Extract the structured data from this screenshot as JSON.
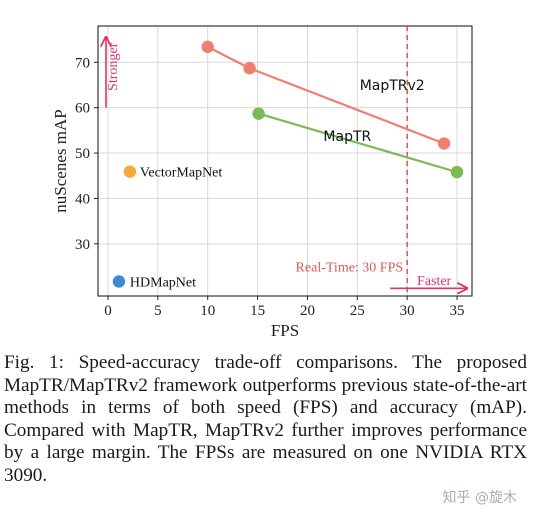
{
  "chart_data": {
    "type": "scatter",
    "xlabel": "FPS",
    "ylabel": "nuScenes mAP",
    "xlim": [
      -1,
      36.5
    ],
    "ylim": [
      18.5,
      78
    ],
    "xticks": [
      0,
      5,
      10,
      15,
      20,
      25,
      30,
      35
    ],
    "yticks": [
      30,
      40,
      50,
      60,
      70
    ],
    "xtick_labels": [
      "0",
      "5",
      "10",
      "15",
      "20",
      "25",
      "30",
      "35"
    ],
    "ytick_labels": [
      "30",
      "40",
      "50",
      "60",
      "70"
    ],
    "grid": true,
    "series": [
      {
        "name": "MapTRv2",
        "color": "#f07f72",
        "line": true,
        "points": [
          {
            "x": 10.0,
            "y": 73.4
          },
          {
            "x": 14.2,
            "y": 68.7
          },
          {
            "x": 33.7,
            "y": 52.1
          }
        ]
      },
      {
        "name": "MapTR",
        "color": "#7dba54",
        "line": true,
        "points": [
          {
            "x": 15.1,
            "y": 58.7
          },
          {
            "x": 35.0,
            "y": 45.8
          }
        ]
      },
      {
        "name": "VectorMapNet",
        "color": "#f4a93c",
        "line": false,
        "points": [
          {
            "x": 2.2,
            "y": 45.9
          }
        ]
      },
      {
        "name": "HDMapNet",
        "color": "#3d8bd2",
        "line": false,
        "points": [
          {
            "x": 1.1,
            "y": 21.7
          }
        ]
      }
    ],
    "annotations": [
      {
        "text": "MapTRv2",
        "anchor_x": 28.5,
        "anchor_y": 65.0
      },
      {
        "text": "MapTR",
        "anchor_x": 24.0,
        "anchor_y": 53.8
      },
      {
        "text": "VectorMapNet",
        "anchor_x": 3.2,
        "anchor_y": 45.9
      },
      {
        "text": "HDMapNet",
        "anchor_x": 2.2,
        "anchor_y": 21.7
      },
      {
        "text": "Real-Time: 30 FPS",
        "anchor_x": 29.6,
        "anchor_y": 25.0
      },
      {
        "text": "Faster",
        "anchor_x": 32.7,
        "anchor_y": 22.0
      },
      {
        "text": "Stronger",
        "anchor_x": 0.9,
        "anchor_y": 69.0
      }
    ],
    "reference_line": {
      "x": 30,
      "style": "dashed",
      "color": "#d64a47"
    },
    "arrows": {
      "stronger": {
        "color": "#e0336a",
        "from": {
          "x": -0.2,
          "y": 60.0
        },
        "to": {
          "x": -0.2,
          "y": 75.5
        }
      },
      "faster": {
        "color": "#e0336a",
        "from": {
          "x": 28.3,
          "y": 20.2
        },
        "to": {
          "x": 36.0,
          "y": 20.2
        }
      }
    }
  },
  "caption": {
    "text": "Fig. 1: Speed-accuracy trade-off comparisons. The proposed MapTR/MapTRv2 framework outperforms previous state-of-the-art methods in terms of both speed (FPS) and accuracy (mAP). Compared with MapTR, MapTRv2 further improves performance by a large margin. The FPSs are measured on one NVIDIA RTX 3090."
  },
  "watermark": "知乎 @旋木"
}
